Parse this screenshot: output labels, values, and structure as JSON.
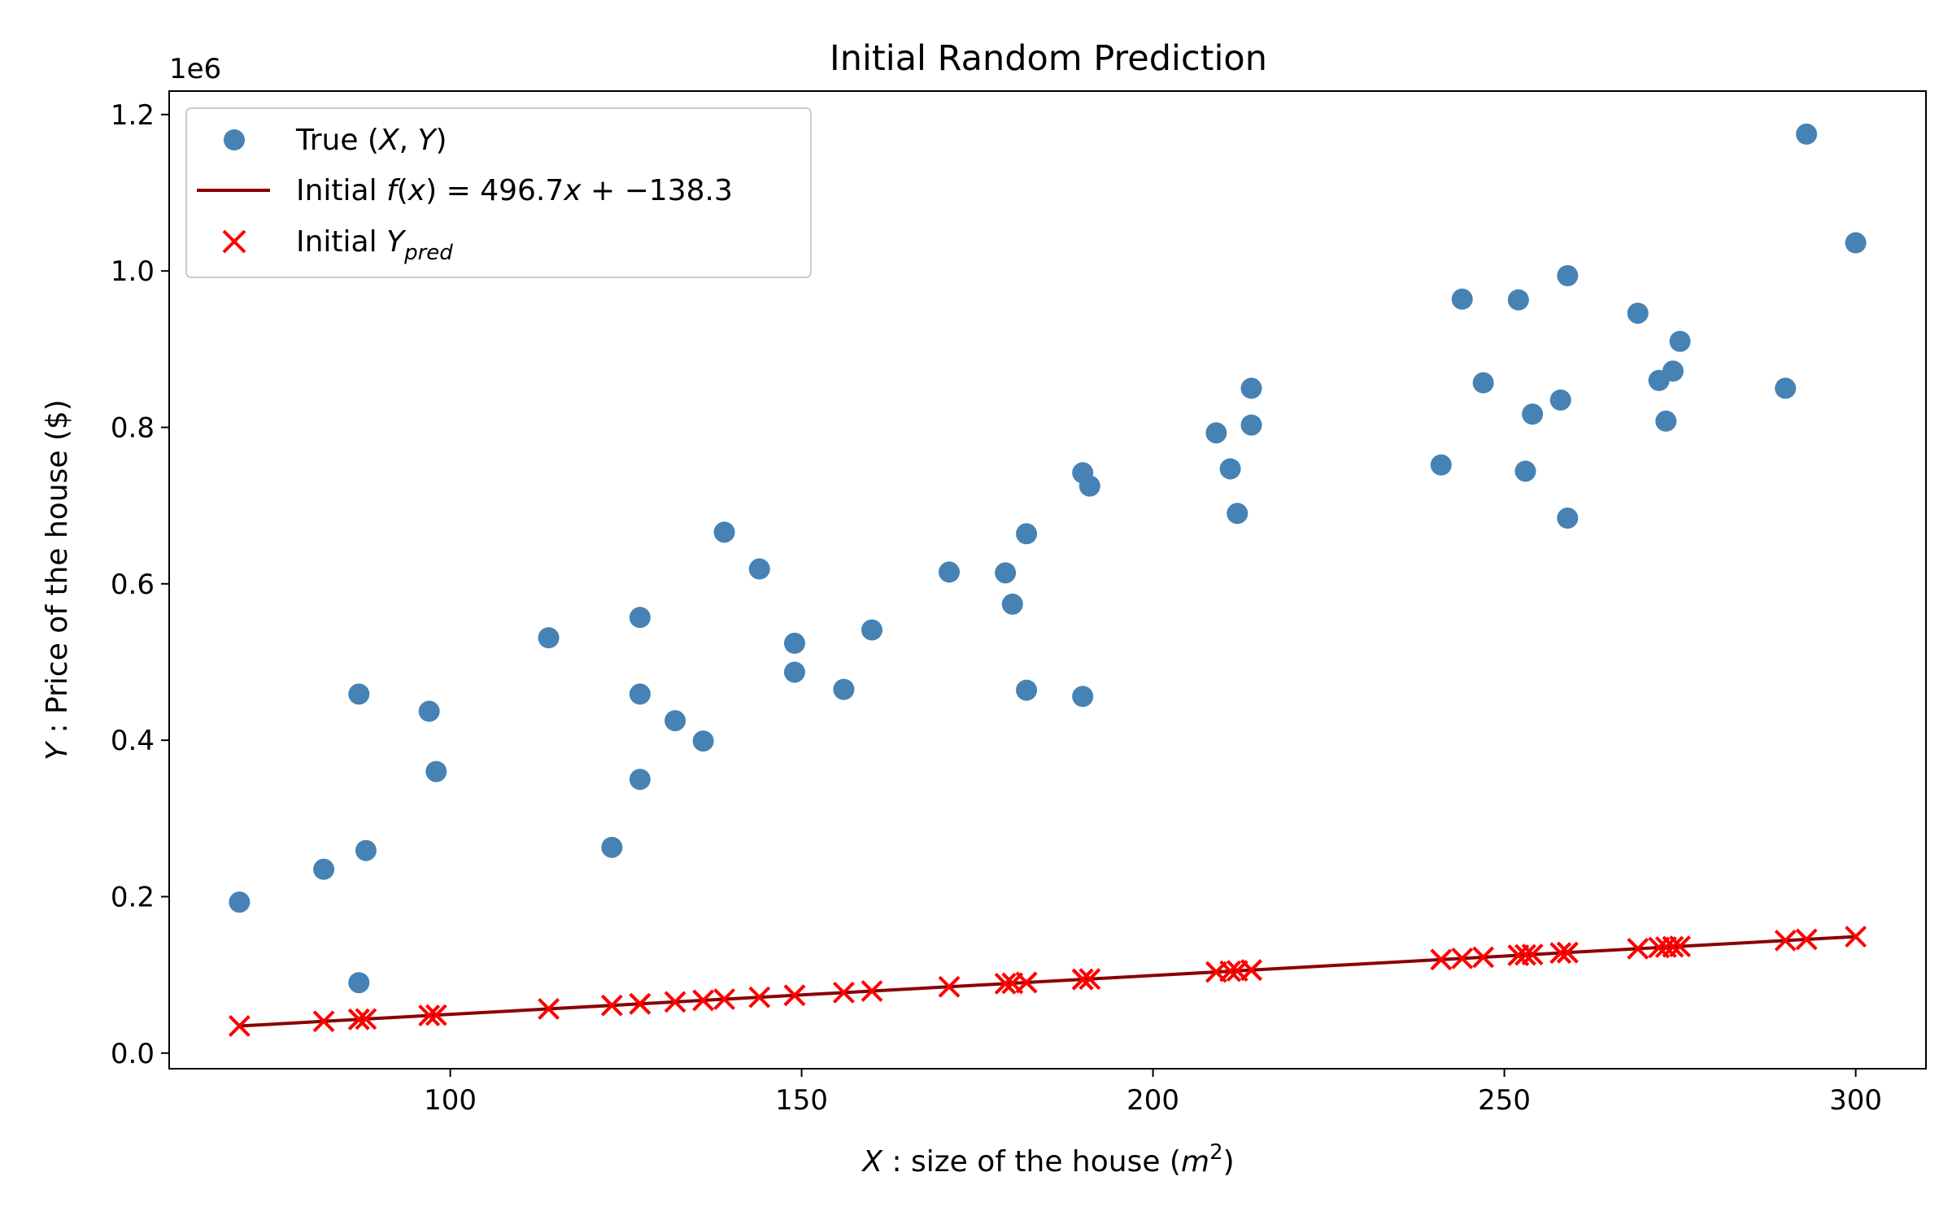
{
  "chart_data": {
    "type": "scatter",
    "title": "Initial Random Prediction",
    "xlabel": "X : size of the house (m²)",
    "ylabel": "Y : Price of the house ($)",
    "y_offset_label": "1e6",
    "xlim": [
      60,
      310
    ],
    "ylim": [
      -0.02,
      1.23
    ],
    "y_scale": 1000000,
    "xticks": [
      100,
      150,
      200,
      250,
      300
    ],
    "yticks": [
      0.0,
      0.2,
      0.4,
      0.6,
      0.8,
      1.0,
      1.2
    ],
    "xtick_labels": [
      "100",
      "150",
      "200",
      "250",
      "300"
    ],
    "ytick_labels": [
      "0.0",
      "0.2",
      "0.4",
      "0.6",
      "0.8",
      "1.0",
      "1.2"
    ],
    "grid": false,
    "legend_position": "top-left",
    "legend": {
      "true_label": "True (X, Y)",
      "line_label": "Initial f(x) = 496.7x + −138.3",
      "pred_label": "Initial Ypred"
    },
    "line": {
      "slope": 496.7,
      "intercept": -138.3
    },
    "series": [
      {
        "name": "True (X, Y)",
        "color": "#4682b4",
        "marker": "circle",
        "points": [
          [
            70,
            0.193
          ],
          [
            82,
            0.235
          ],
          [
            87,
            0.459
          ],
          [
            87,
            0.09
          ],
          [
            88,
            0.259
          ],
          [
            97,
            0.437
          ],
          [
            98,
            0.36
          ],
          [
            114,
            0.531
          ],
          [
            123,
            0.263
          ],
          [
            127,
            0.557
          ],
          [
            127,
            0.459
          ],
          [
            127,
            0.35
          ],
          [
            132,
            0.425
          ],
          [
            136,
            0.399
          ],
          [
            139,
            0.666
          ],
          [
            144,
            0.619
          ],
          [
            149,
            0.524
          ],
          [
            149,
            0.487
          ],
          [
            156,
            0.465
          ],
          [
            160,
            0.541
          ],
          [
            171,
            0.615
          ],
          [
            179,
            0.614
          ],
          [
            180,
            0.574
          ],
          [
            182,
            0.664
          ],
          [
            182,
            0.464
          ],
          [
            190,
            0.456
          ],
          [
            190,
            0.742
          ],
          [
            191,
            0.725
          ],
          [
            209,
            0.793
          ],
          [
            211,
            0.747
          ],
          [
            212,
            0.69
          ],
          [
            214,
            0.85
          ],
          [
            214,
            0.803
          ],
          [
            241,
            0.752
          ],
          [
            244,
            0.964
          ],
          [
            247,
            0.857
          ],
          [
            252,
            0.963
          ],
          [
            253,
            0.744
          ],
          [
            254,
            0.817
          ],
          [
            258,
            0.835
          ],
          [
            259,
            0.994
          ],
          [
            259,
            0.684
          ],
          [
            269,
            0.946
          ],
          [
            272,
            0.86
          ],
          [
            273,
            0.808
          ],
          [
            274,
            0.872
          ],
          [
            275,
            0.91
          ],
          [
            290,
            0.85
          ],
          [
            293,
            1.175
          ],
          [
            300,
            1.036
          ]
        ]
      },
      {
        "name": "Initial f(x) = 496.7x + −138.3",
        "color": "#8b0000",
        "marker": "line"
      },
      {
        "name": "Initial Ypred",
        "color": "#ff0000",
        "marker": "x"
      }
    ]
  }
}
